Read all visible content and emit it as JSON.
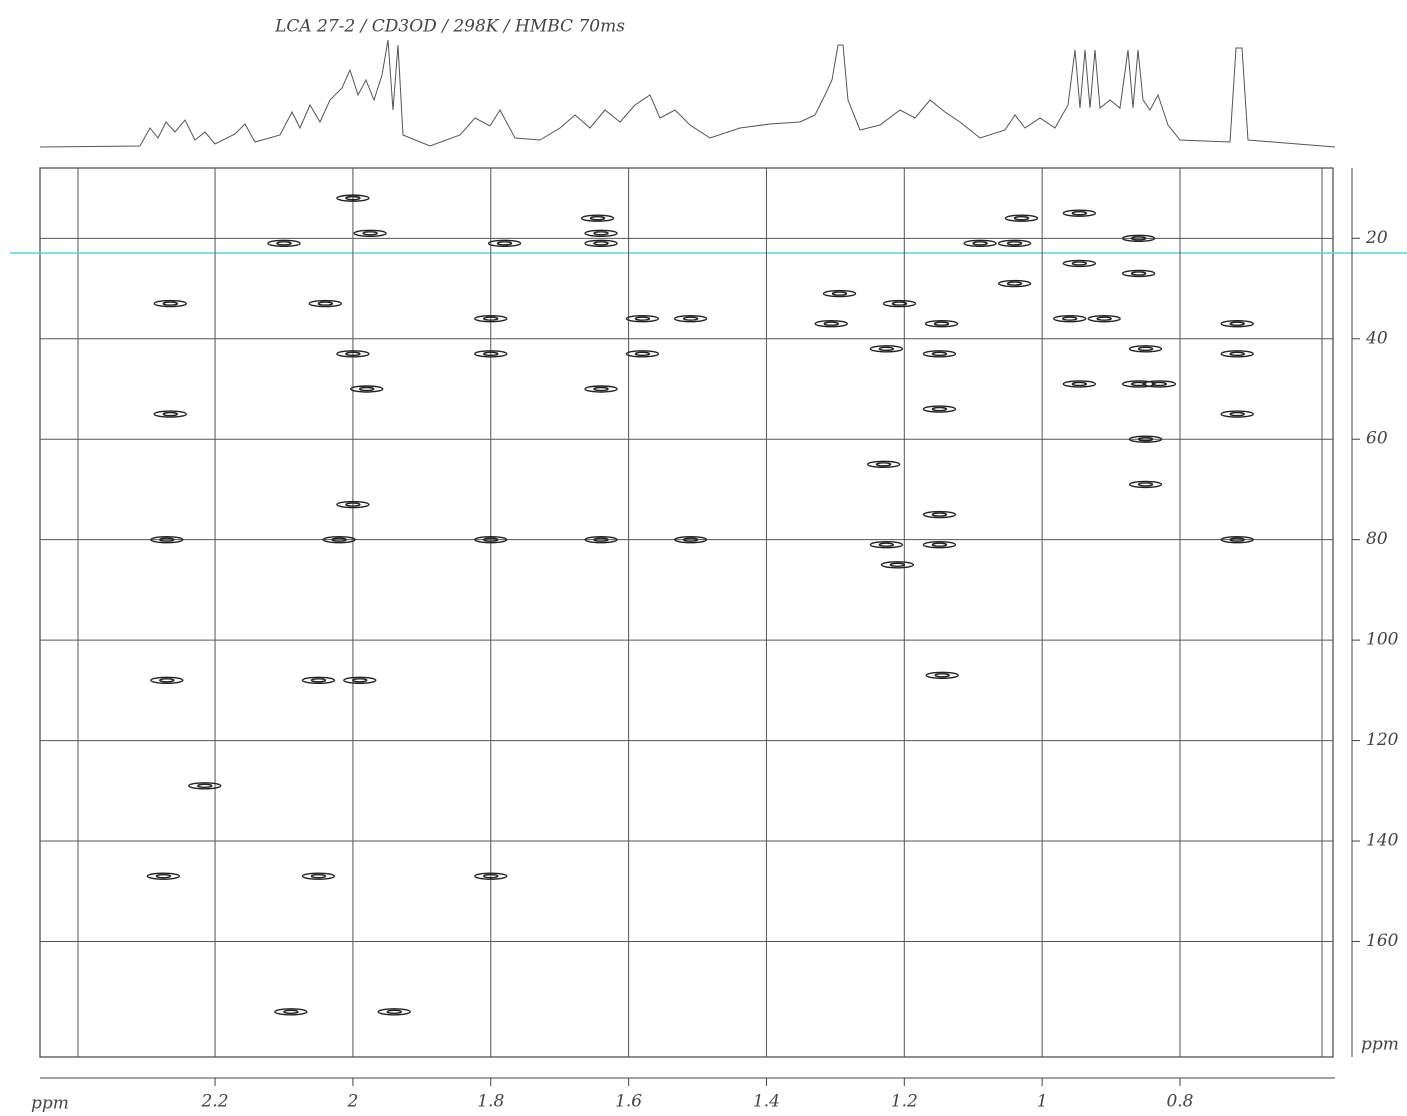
{
  "chart_data": {
    "type": "scatter",
    "title": "LCA 27-2 / CD3OD / 298K / HMBC 70ms",
    "xlabel": "ppm",
    "ylabel": "ppm",
    "xlim": [
      2.454,
      0.578
    ],
    "ylim": [
      6,
      183
    ],
    "xticks": [
      2.2,
      2.0,
      1.8,
      1.6,
      1.4,
      1.2,
      1.0,
      0.8
    ],
    "yticks": [
      20,
      40,
      60,
      80,
      100,
      120,
      140,
      160
    ],
    "grid": true,
    "color": "#222222",
    "x": [
      2.0,
      1.645,
      1.64,
      1.64,
      2.1,
      1.78,
      1.975,
      2.265,
      2.04,
      1.8,
      1.58,
      1.51,
      2.0,
      1.8,
      1.58,
      1.64,
      1.98,
      2.265,
      2.0,
      2.27,
      2.02,
      1.8,
      1.64,
      1.51,
      2.27,
      2.05,
      1.99,
      2.215,
      2.275,
      2.05,
      1.8,
      2.09,
      1.94,
      1.294,
      1.306,
      1.207,
      1.226,
      1.23,
      1.226,
      1.21,
      1.146,
      1.149,
      1.149,
      1.149,
      1.149,
      1.145,
      1.03,
      1.04,
      1.04,
      0.946,
      0.946,
      0.946,
      0.86,
      0.86,
      0.86,
      0.85,
      0.85,
      0.85,
      0.717,
      0.717,
      0.717,
      0.717,
      0.96,
      0.91,
      0.83,
      1.09
    ],
    "values": [
      12,
      16,
      19,
      21,
      21,
      21,
      19,
      33,
      33,
      36,
      36,
      36,
      43,
      43,
      43,
      50,
      50,
      55,
      73,
      80,
      80,
      80,
      80,
      80,
      108,
      108,
      108,
      129,
      147,
      147,
      147,
      174,
      174,
      31,
      37,
      33,
      42,
      65,
      81,
      85,
      37,
      43,
      54,
      75,
      81,
      107,
      16,
      21,
      29,
      15,
      25,
      49,
      20,
      27,
      49,
      42,
      60,
      69,
      37,
      43,
      55,
      80,
      36,
      36,
      49,
      21
    ]
  }
}
